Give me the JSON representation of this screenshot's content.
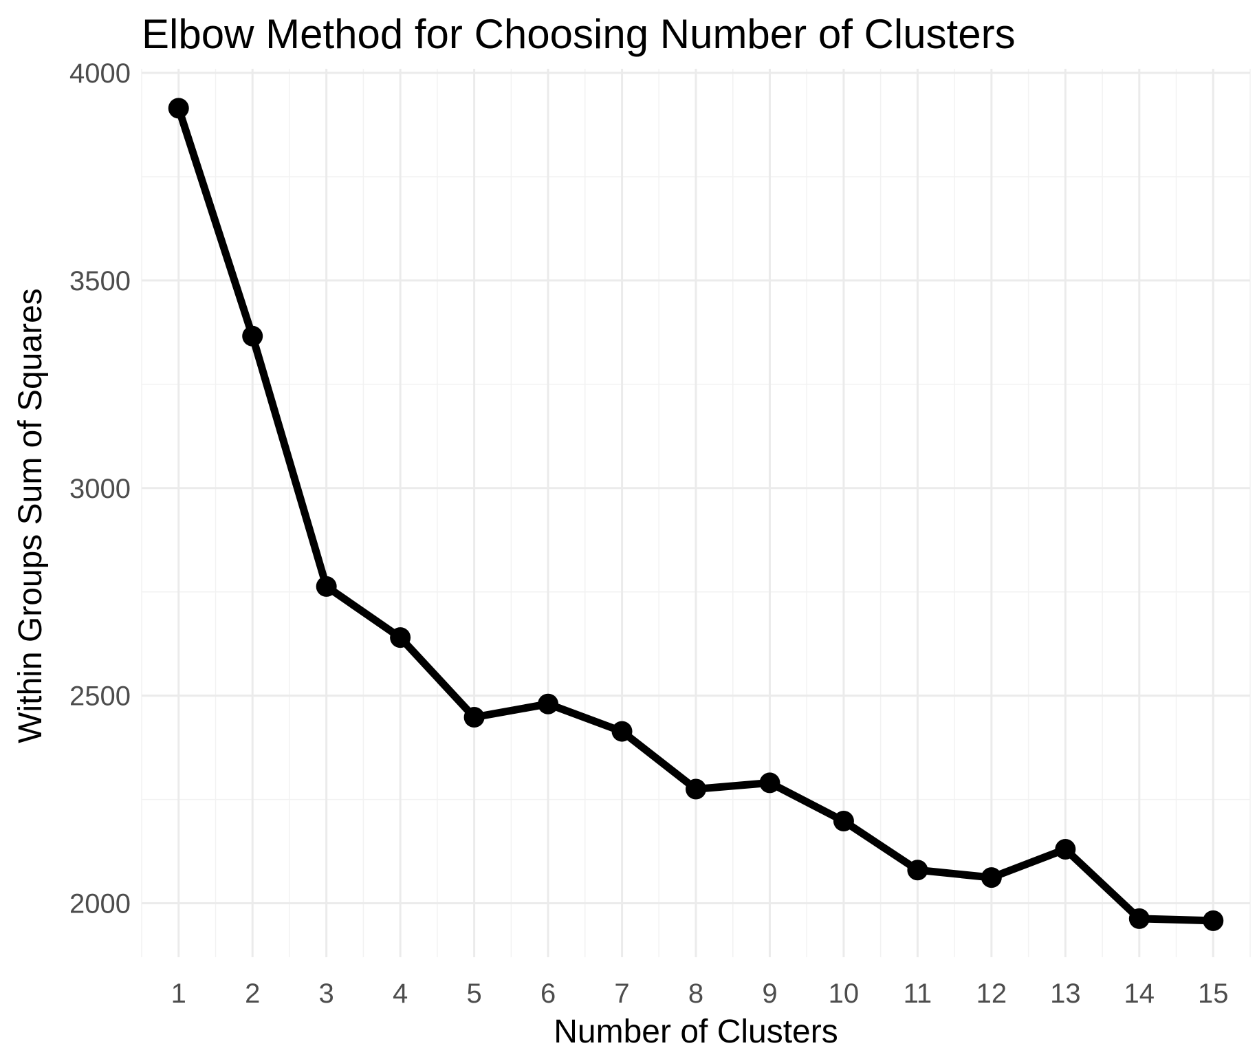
{
  "chart_data": {
    "type": "line",
    "title": "Elbow Method for Choosing Number of Clusters",
    "xlabel": "Number of Clusters",
    "ylabel": "Within Groups Sum of Squares",
    "x": [
      1,
      2,
      3,
      4,
      5,
      6,
      7,
      8,
      9,
      10,
      11,
      12,
      13,
      14,
      15
    ],
    "values": [
      3915,
      3366,
      2763,
      2640,
      2448,
      2480,
      2414,
      2275,
      2290,
      2198,
      2080,
      2062,
      2130,
      1963,
      1958
    ],
    "xlim": [
      0.5,
      15.5
    ],
    "ylim": [
      1870,
      4010
    ],
    "x_ticks": [
      "1",
      "2",
      "3",
      "4",
      "5",
      "6",
      "7",
      "8",
      "9",
      "10",
      "11",
      "12",
      "13",
      "14",
      "15"
    ],
    "y_ticks": [
      2000,
      2500,
      3000,
      3500,
      4000
    ],
    "y_tick_labels": [
      "2000",
      "2500",
      "3000",
      "3500",
      "4000"
    ],
    "grid": true,
    "legend": "none",
    "line_color": "#000000",
    "grid_color": "#ebebeb"
  }
}
